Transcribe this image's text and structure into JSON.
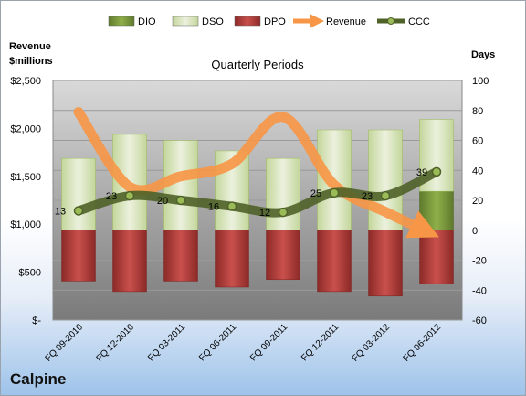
{
  "company": "Calpine",
  "chart_data": {
    "type": "bar",
    "title": "Quarterly Periods",
    "y_left_label_line1": "Revenue",
    "y_left_label_line2": "$millions",
    "y_right_label": "Days",
    "categories": [
      "FQ 09-2010",
      "FQ 12-2010",
      "FQ 03-2011",
      "FQ 06-2011",
      "FQ 09-2011",
      "FQ 12-2011",
      "FQ 03-2012",
      "FQ 06-2012"
    ],
    "left_ticks": [
      "$-",
      "$500",
      "$1,000",
      "$1,500",
      "$2,000",
      "$2,500"
    ],
    "right_ticks": [
      "-60",
      "-40",
      "-20",
      "0",
      "20",
      "40",
      "60",
      "80",
      "100"
    ],
    "ylim_left": [
      0,
      2500
    ],
    "ylim_right": [
      -60,
      100
    ],
    "grid": true,
    "legend_position": "top",
    "series": [
      {
        "name": "DIO",
        "color": "#77933c",
        "values": [
          0,
          0,
          0,
          0,
          0,
          0,
          0,
          0
        ]
      },
      {
        "name": "DSO",
        "color": "#d7e4bd",
        "values": [
          48,
          41,
          40,
          37,
          36,
          42,
          40,
          38
        ]
      },
      {
        "name": "DPO",
        "color": "#c0504d",
        "values": [
          -34,
          -41,
          -34,
          -38,
          -33,
          -41,
          -44,
          -36
        ]
      },
      {
        "name": "Revenue",
        "color": "#f79646",
        "values": [
          2170,
          1390,
          1500,
          1630,
          2120,
          1410,
          1130,
          880
        ]
      },
      {
        "name": "CCC",
        "color": "#4f6228",
        "values": [
          13,
          23,
          20,
          16,
          12,
          25,
          23,
          39
        ]
      }
    ],
    "stack_days": {
      "dio_top": [
        0,
        0,
        0,
        0,
        0,
        0,
        0,
        26
      ],
      "dso_top": [
        48,
        64,
        60,
        53,
        48,
        67,
        67,
        74
      ]
    }
  }
}
